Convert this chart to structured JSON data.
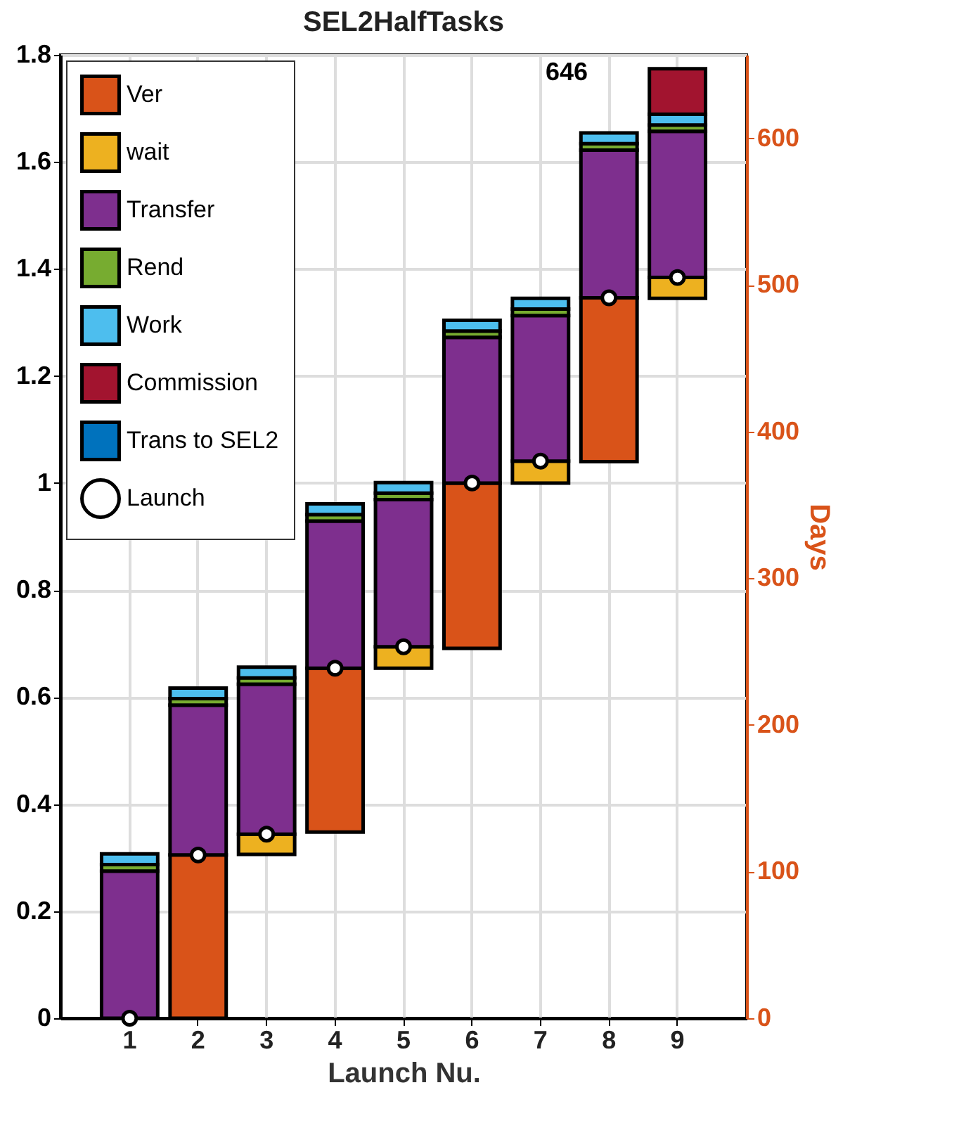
{
  "chart_data": {
    "type": "bar",
    "title": "SEL2HalfTasks",
    "xlabel": "Launch Nu.",
    "y2label": "Days",
    "categories": [
      "1",
      "2",
      "3",
      "4",
      "5",
      "6",
      "7",
      "8",
      "9"
    ],
    "series": [
      {
        "name": "Ver",
        "color": "#d95319",
        "base": [
          null,
          0,
          null,
          0.348,
          null,
          0.691,
          null,
          1.04,
          null
        ],
        "values": [
          null,
          0.305,
          null,
          0.306,
          null,
          0.309,
          null,
          0.306,
          null
        ]
      },
      {
        "name": "wait",
        "color": "#edb120",
        "base": [
          null,
          null,
          0.306,
          null,
          0.654,
          null,
          1.0,
          null,
          1.345
        ],
        "values": [
          null,
          null,
          0.038,
          null,
          0.04,
          null,
          0.041,
          null,
          0.039
        ]
      },
      {
        "name": "Transfer",
        "color": "#7e2f8e",
        "base": [
          0,
          0.305,
          0.344,
          0.654,
          0.694,
          1.0,
          1.041,
          1.346,
          1.384
        ],
        "values": [
          0.275,
          0.28,
          0.28,
          0.275,
          0.275,
          0.272,
          0.272,
          0.276,
          0.273
        ]
      },
      {
        "name": "Rend",
        "color": "#77ac30",
        "base": [
          0.275,
          0.585,
          0.624,
          0.929,
          0.969,
          1.272,
          1.313,
          1.622,
          1.657
        ],
        "values": [
          0.012,
          0.012,
          0.012,
          0.012,
          0.012,
          0.012,
          0.012,
          0.012,
          0.012
        ]
      },
      {
        "name": "Work",
        "color": "#4dbeee",
        "base": [
          0.287,
          0.597,
          0.636,
          0.941,
          0.981,
          1.284,
          1.325,
          1.634,
          1.669
        ],
        "values": [
          0.02,
          0.02,
          0.02,
          0.02,
          0.02,
          0.02,
          0.02,
          0.02,
          0.02
        ]
      },
      {
        "name": "Commission",
        "color": "#a2142f",
        "base": [
          null,
          null,
          null,
          null,
          null,
          null,
          null,
          null,
          1.689
        ],
        "values": [
          null,
          null,
          null,
          null,
          null,
          null,
          null,
          null,
          0.085
        ]
      },
      {
        "name": "Trans to SEL2",
        "color": "#0072bd",
        "values": [
          null,
          null,
          null,
          null,
          null,
          null,
          null,
          null,
          null
        ]
      },
      {
        "name": "Launch",
        "type": "scatter",
        "color": "#ffffff",
        "values": [
          0,
          0.305,
          0.344,
          0.654,
          0.694,
          1.0,
          1.041,
          1.346,
          1.384
        ]
      }
    ],
    "marker": "circle",
    "ylim": [
      0,
      1.8
    ],
    "yticks": [
      0,
      0.2,
      0.4,
      0.6,
      0.8,
      1,
      1.2,
      1.4,
      1.6,
      1.8
    ],
    "y2lim": [
      0,
      657
    ],
    "y2ticks": [
      0,
      100,
      200,
      300,
      400,
      500,
      600
    ],
    "grid": true,
    "legend": "top left",
    "annotations": [
      "646"
    ]
  }
}
